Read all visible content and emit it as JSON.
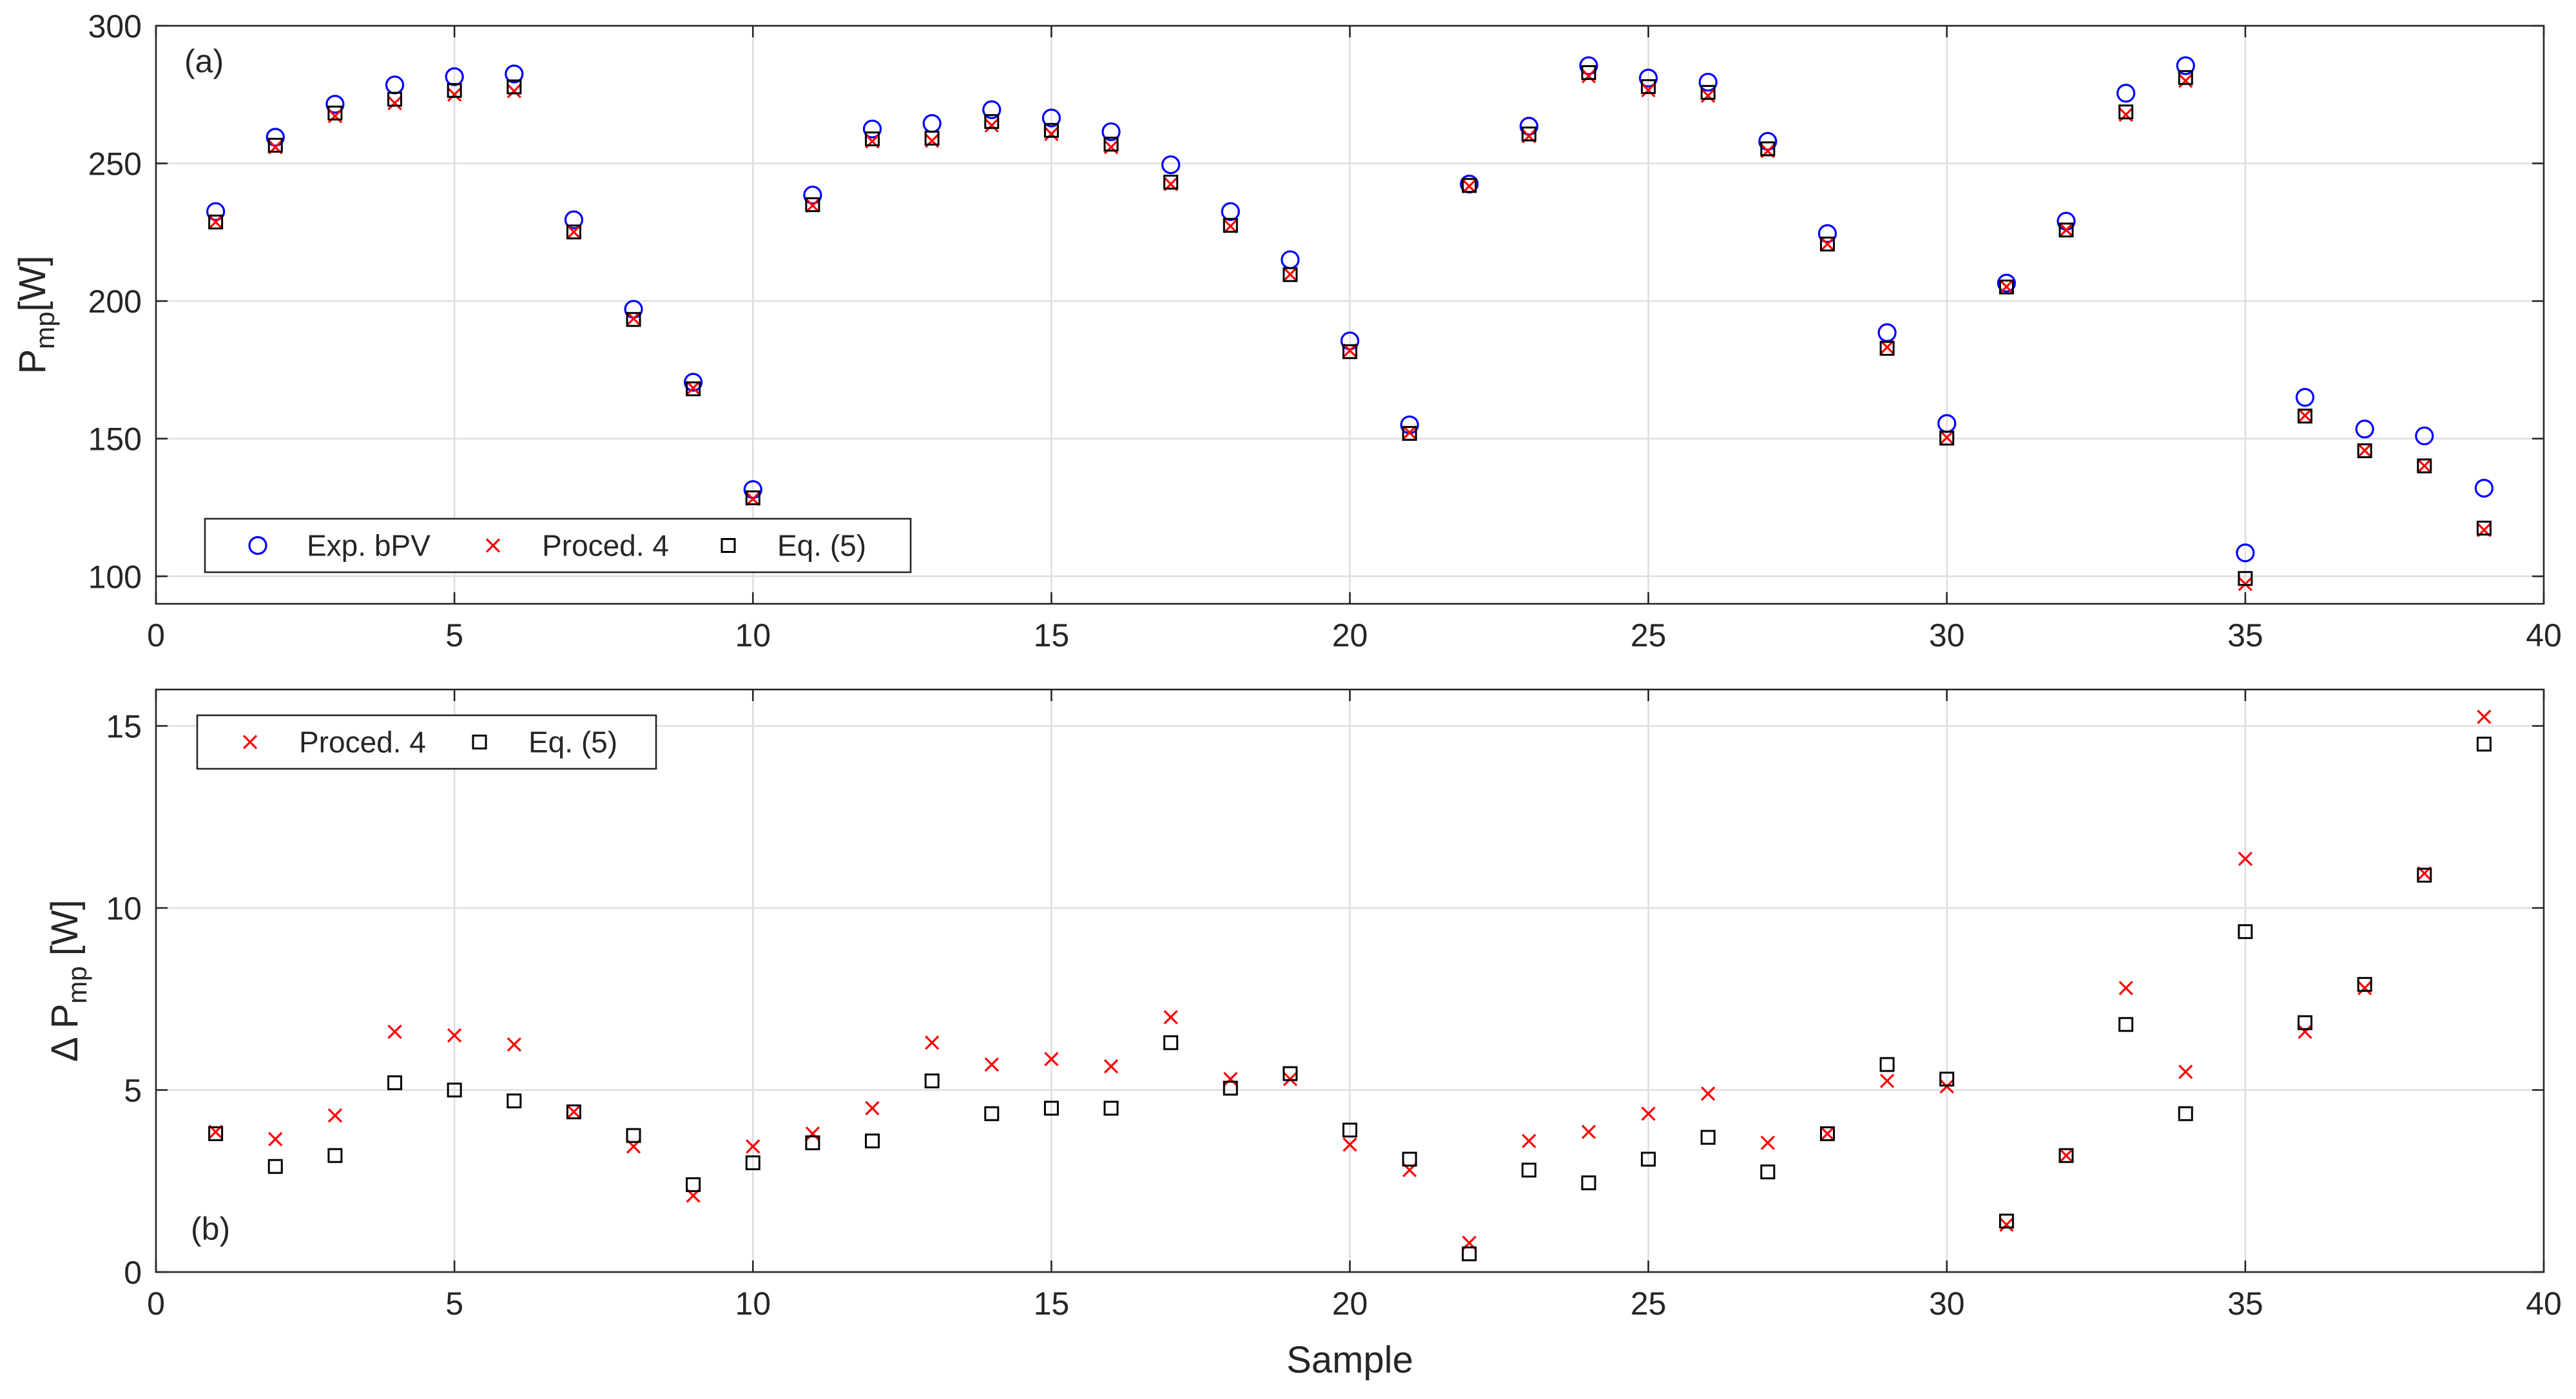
{
  "chart_data": [
    {
      "type": "scatter",
      "panel_label": "(a)",
      "xlabel": "",
      "ylabel": {
        "main": "P",
        "sub": "mp",
        "unit": "[W]"
      },
      "xlim": [
        0,
        40
      ],
      "ylim": [
        90,
        300
      ],
      "xticks": [
        0,
        5,
        10,
        15,
        20,
        25,
        30,
        35,
        40
      ],
      "yticks": [
        100,
        150,
        200,
        250,
        300
      ],
      "grid": true,
      "legend": {
        "placement": "bottom-left",
        "orientation": "horizontal"
      },
      "x": [
        1,
        2,
        3,
        4,
        5,
        6,
        7,
        8,
        9,
        10,
        11,
        12,
        13,
        14,
        15,
        16,
        17,
        18,
        19,
        20,
        21,
        22,
        23,
        24,
        25,
        26,
        27,
        28,
        29,
        30,
        31,
        32,
        33,
        34,
        35,
        36,
        37,
        38,
        39
      ],
      "series": [
        {
          "name": "Exp. bPV",
          "marker": "circle",
          "color": "#0000ff",
          "values": [
            232.5,
            259.5,
            271.5,
            278.5,
            281.5,
            282.5,
            229.5,
            197.0,
            170.5,
            131.5,
            238.5,
            262.5,
            264.5,
            269.5,
            266.5,
            261.5,
            249.5,
            232.5,
            215.0,
            185.5,
            155.0,
            242.5,
            263.5,
            285.5,
            281.0,
            279.5,
            258.0,
            224.5,
            188.5,
            155.5,
            206.5,
            229.0,
            275.5,
            285.5,
            108.5,
            165.0,
            153.5,
            151.0,
            132.0
          ]
        },
        {
          "name": "Proced. 4",
          "marker": "x",
          "color": "#ff0000",
          "values": [
            228.7,
            255.9,
            267.2,
            271.9,
            275.0,
            276.3,
            225.1,
            193.6,
            168.4,
            128.1,
            234.7,
            258.0,
            258.2,
            263.8,
            260.7,
            255.9,
            242.5,
            227.2,
            209.7,
            182.0,
            152.2,
            241.7,
            259.9,
            281.7,
            276.6,
            274.6,
            254.5,
            220.7,
            183.2,
            150.4,
            205.2,
            225.8,
            267.7,
            280.0,
            97.2,
            158.4,
            145.7,
            140.1,
            116.8
          ]
        },
        {
          "name": "Eq. (5)",
          "marker": "square",
          "color": "#000000",
          "values": [
            228.7,
            256.6,
            268.3,
            273.3,
            276.5,
            277.8,
            225.1,
            193.3,
            168.1,
            128.5,
            235.0,
            258.9,
            259.2,
            265.2,
            262.0,
            257.0,
            243.2,
            227.5,
            209.6,
            181.6,
            151.9,
            242.0,
            260.7,
            283.0,
            277.9,
            275.8,
            255.3,
            220.7,
            182.8,
            150.2,
            205.1,
            225.8,
            268.7,
            281.2,
            99.2,
            158.2,
            145.6,
            140.1,
            117.5
          ]
        }
      ]
    },
    {
      "type": "scatter",
      "panel_label": "(b)",
      "xlabel": "Sample",
      "ylabel": {
        "main": "Δ P",
        "sub": "mp",
        "unit": " [W]"
      },
      "xlim": [
        0,
        40
      ],
      "ylim": [
        0,
        16
      ],
      "xticks": [
        0,
        5,
        10,
        15,
        20,
        25,
        30,
        35,
        40
      ],
      "yticks": [
        0,
        5,
        10,
        15
      ],
      "grid": true,
      "legend": {
        "placement": "top-left",
        "orientation": "horizontal"
      },
      "x": [
        1,
        2,
        3,
        4,
        5,
        6,
        7,
        8,
        9,
        10,
        11,
        12,
        13,
        14,
        15,
        16,
        17,
        18,
        19,
        20,
        21,
        22,
        23,
        24,
        25,
        26,
        27,
        28,
        29,
        30,
        31,
        32,
        33,
        34,
        35,
        36,
        37,
        38,
        39
      ],
      "series": [
        {
          "name": "Proced. 4",
          "marker": "x",
          "color": "#ff0000",
          "values": [
            3.85,
            3.65,
            4.3,
            6.6,
            6.5,
            6.25,
            4.4,
            3.45,
            2.1,
            3.45,
            3.8,
            4.5,
            6.3,
            5.7,
            5.85,
            5.65,
            7.0,
            5.3,
            5.3,
            3.5,
            2.8,
            0.8,
            3.6,
            3.85,
            4.35,
            4.9,
            3.55,
            3.8,
            5.25,
            5.1,
            1.3,
            3.2,
            7.8,
            5.5,
            11.35,
            6.6,
            7.8,
            10.95,
            15.25
          ]
        },
        {
          "name": "Eq. (5)",
          "marker": "square",
          "color": "#000000",
          "values": [
            3.8,
            2.9,
            3.2,
            5.2,
            5.0,
            4.7,
            4.4,
            3.75,
            2.4,
            3.0,
            3.55,
            3.6,
            5.25,
            4.35,
            4.5,
            4.5,
            6.3,
            5.05,
            5.45,
            3.9,
            3.1,
            0.5,
            2.8,
            2.45,
            3.1,
            3.7,
            2.75,
            3.8,
            5.7,
            5.3,
            1.4,
            3.2,
            6.8,
            4.35,
            9.35,
            6.85,
            7.9,
            10.9,
            14.5
          ]
        }
      ]
    }
  ]
}
